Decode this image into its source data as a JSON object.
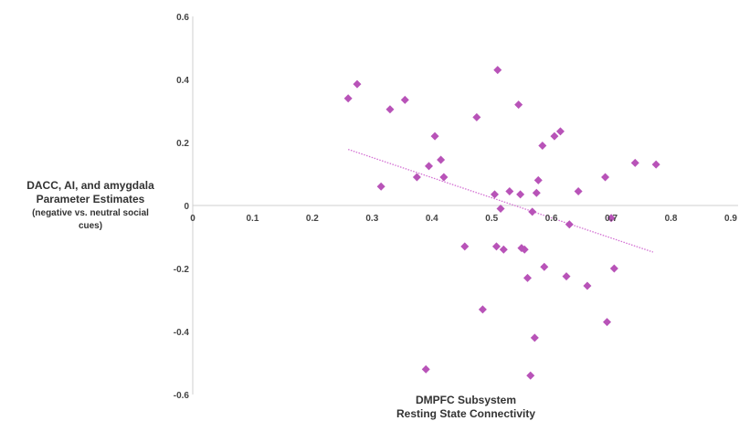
{
  "chart_data": {
    "type": "scatter",
    "title": "",
    "xlabel": [
      "DMPFC Subsystem",
      "Resting State Connectivity"
    ],
    "ylabel": [
      "DACC, AI, and amygdala",
      "Parameter Estimates",
      "(negative vs. neutral social",
      "cues)"
    ],
    "xlim": [
      0,
      0.9
    ],
    "ylim": [
      -0.6,
      0.6
    ],
    "x_ticks": [
      "0",
      "0.1",
      "0.2",
      "0.3",
      "0.4",
      "0.5",
      "0.6",
      "0.7",
      "0.8",
      "0.9"
    ],
    "y_ticks": [
      "0.6",
      "0.4",
      "0.2",
      "0",
      "-0.2",
      "-0.4",
      "-0.6"
    ],
    "y_tick_values": [
      0.6,
      0.4,
      0.2,
      0,
      -0.2,
      -0.4,
      -0.6
    ],
    "grid": false,
    "marker_color": "#b853b8",
    "trendline": {
      "style": "dotted",
      "color": "#d36fd3",
      "x": [
        0.26,
        0.77
      ],
      "y": [
        0.178,
        -0.148
      ]
    },
    "points": [
      {
        "x": 0.26,
        "y": 0.34
      },
      {
        "x": 0.275,
        "y": 0.385
      },
      {
        "x": 0.315,
        "y": 0.06
      },
      {
        "x": 0.33,
        "y": 0.305
      },
      {
        "x": 0.355,
        "y": 0.335
      },
      {
        "x": 0.375,
        "y": 0.09
      },
      {
        "x": 0.39,
        "y": -0.52
      },
      {
        "x": 0.395,
        "y": 0.125
      },
      {
        "x": 0.405,
        "y": 0.22
      },
      {
        "x": 0.415,
        "y": 0.145
      },
      {
        "x": 0.42,
        "y": 0.09
      },
      {
        "x": 0.455,
        "y": -0.13
      },
      {
        "x": 0.475,
        "y": 0.28
      },
      {
        "x": 0.485,
        "y": -0.33
      },
      {
        "x": 0.505,
        "y": 0.035
      },
      {
        "x": 0.508,
        "y": -0.13
      },
      {
        "x": 0.51,
        "y": 0.43
      },
      {
        "x": 0.515,
        "y": -0.01
      },
      {
        "x": 0.52,
        "y": -0.14
      },
      {
        "x": 0.53,
        "y": 0.045
      },
      {
        "x": 0.545,
        "y": 0.32
      },
      {
        "x": 0.548,
        "y": 0.035
      },
      {
        "x": 0.55,
        "y": -0.135
      },
      {
        "x": 0.555,
        "y": -0.14
      },
      {
        "x": 0.56,
        "y": -0.23
      },
      {
        "x": 0.565,
        "y": -0.54
      },
      {
        "x": 0.568,
        "y": -0.02
      },
      {
        "x": 0.572,
        "y": -0.42
      },
      {
        "x": 0.575,
        "y": 0.04
      },
      {
        "x": 0.578,
        "y": 0.08
      },
      {
        "x": 0.585,
        "y": 0.19
      },
      {
        "x": 0.588,
        "y": -0.195
      },
      {
        "x": 0.605,
        "y": 0.22
      },
      {
        "x": 0.615,
        "y": 0.235
      },
      {
        "x": 0.625,
        "y": -0.225
      },
      {
        "x": 0.63,
        "y": -0.06
      },
      {
        "x": 0.645,
        "y": 0.045
      },
      {
        "x": 0.66,
        "y": -0.255
      },
      {
        "x": 0.69,
        "y": 0.09
      },
      {
        "x": 0.693,
        "y": -0.37
      },
      {
        "x": 0.7,
        "y": -0.04
      },
      {
        "x": 0.705,
        "y": -0.2
      },
      {
        "x": 0.74,
        "y": 0.135
      },
      {
        "x": 0.775,
        "y": 0.13
      }
    ]
  }
}
